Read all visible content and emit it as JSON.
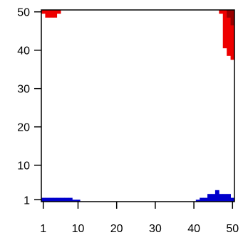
{
  "chart_data": {
    "type": "heatmap",
    "title": "",
    "xlabel": "",
    "ylabel": "",
    "xlim": [
      1,
      50
    ],
    "ylim": [
      1,
      50
    ],
    "grid": false,
    "legend": "none",
    "x_ticks": [
      {
        "value": 1,
        "label": "1"
      },
      {
        "value": 10,
        "label": "10"
      },
      {
        "value": 20,
        "label": "20"
      },
      {
        "value": 30,
        "label": "30"
      },
      {
        "value": 40,
        "label": "40"
      },
      {
        "value": 50,
        "label": "50"
      }
    ],
    "y_ticks": [
      {
        "value": 1,
        "label": "1"
      },
      {
        "value": 10,
        "label": "10"
      },
      {
        "value": 20,
        "label": "20"
      },
      {
        "value": 30,
        "label": "30"
      },
      {
        "value": 40,
        "label": "40"
      },
      {
        "value": 50,
        "label": "50"
      }
    ],
    "colors": {
      "red": "#ee0000",
      "dark_red": "#990000",
      "blue": "#0000cc",
      "axis": "#000000"
    },
    "regions": [
      {
        "name": "red-top-left",
        "color": "red",
        "columns": [
          {
            "x": 1,
            "y_from": 50,
            "y_to": 50
          },
          {
            "x": 2,
            "y_from": 49,
            "y_to": 50
          },
          {
            "x": 3,
            "y_from": 49,
            "y_to": 50
          },
          {
            "x": 4,
            "y_from": 49,
            "y_to": 50
          },
          {
            "x": 5,
            "y_from": 50,
            "y_to": 50
          }
        ]
      },
      {
        "name": "red-top-right",
        "color": "red",
        "columns": [
          {
            "x": 47,
            "y_from": 50,
            "y_to": 50
          },
          {
            "x": 48,
            "y_from": 41,
            "y_to": 50
          },
          {
            "x": 49,
            "y_from": 39,
            "y_to": 50
          },
          {
            "x": 50,
            "y_from": 38,
            "y_to": 50
          }
        ]
      },
      {
        "name": "dark-red-corner",
        "color": "dark_red",
        "columns": [
          {
            "x": 49,
            "y_from": 49,
            "y_to": 50
          },
          {
            "x": 50,
            "y_from": 47,
            "y_to": 50
          }
        ]
      },
      {
        "name": "blue-bottom-left",
        "color": "blue",
        "columns": [
          {
            "x": 1,
            "y_from": 1,
            "y_to": 1
          },
          {
            "x": 2,
            "y_from": 1,
            "y_to": 1
          },
          {
            "x": 3,
            "y_from": 1,
            "y_to": 1
          },
          {
            "x": 4,
            "y_from": 1,
            "y_to": 1
          },
          {
            "x": 5,
            "y_from": 1,
            "y_to": 1
          },
          {
            "x": 6,
            "y_from": 1,
            "y_to": 1
          },
          {
            "x": 7,
            "y_from": 1,
            "y_to": 1
          },
          {
            "x": 8,
            "y_from": 1,
            "y_to": 1
          },
          {
            "x": 9,
            "y_from": 0.5,
            "y_to": 0.5
          },
          {
            "x": 10,
            "y_from": 0.5,
            "y_to": 0.5
          }
        ]
      },
      {
        "name": "blue-bottom-right",
        "color": "blue",
        "columns": [
          {
            "x": 41,
            "y_from": 0.5,
            "y_to": 0.5
          },
          {
            "x": 42,
            "y_from": 0.5,
            "y_to": 1
          },
          {
            "x": 43,
            "y_from": 0.5,
            "y_to": 1
          },
          {
            "x": 44,
            "y_from": 0.5,
            "y_to": 2
          },
          {
            "x": 45,
            "y_from": 0.5,
            "y_to": 2
          },
          {
            "x": 46,
            "y_from": 0.5,
            "y_to": 3
          },
          {
            "x": 47,
            "y_from": 0.5,
            "y_to": 2
          },
          {
            "x": 48,
            "y_from": 0.5,
            "y_to": 2
          },
          {
            "x": 49,
            "y_from": 0.5,
            "y_to": 2
          },
          {
            "x": 50,
            "y_from": 0.5,
            "y_to": 1
          }
        ]
      }
    ]
  }
}
